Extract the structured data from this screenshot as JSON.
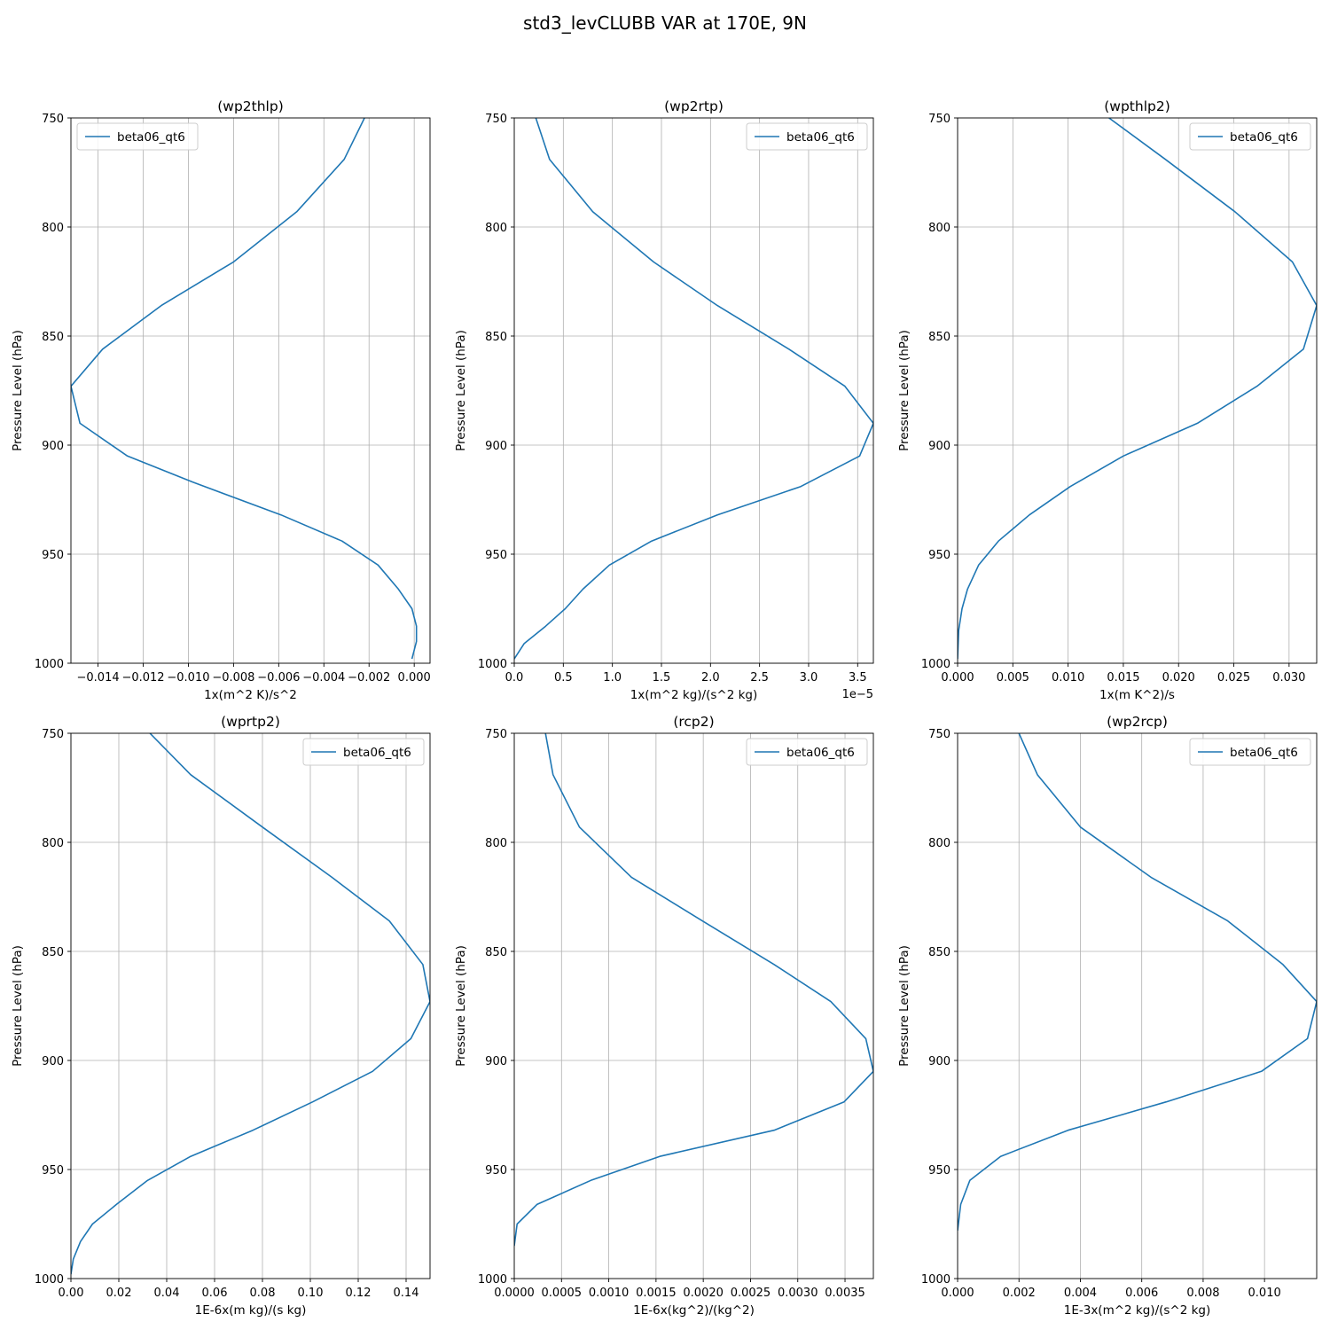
{
  "figure": {
    "title": "std3_levCLUBB VAR at 170E, 9N"
  },
  "style": {
    "line_color": "#1f77b4",
    "grid_color": "#b0b0b0"
  },
  "chart_data": [
    {
      "type": "line",
      "title": "(wp2thlp)",
      "xlabel": "1x(m^2 K)/s^2",
      "ylabel": "Pressure Level (hPa)",
      "xlim": [
        -0.0152,
        0.0007
      ],
      "ylim": [
        1000,
        750
      ],
      "y_inverted": true,
      "grid": true,
      "legend_position": "top-left",
      "x_ticks": [
        "−0.014",
        "−0.012",
        "−0.010",
        "−0.008",
        "−0.006",
        "−0.004",
        "−0.002",
        "0.000"
      ],
      "x_tick_values": [
        -0.014,
        -0.012,
        -0.01,
        -0.008,
        -0.006,
        -0.004,
        -0.002,
        0.0
      ],
      "y_ticks": [
        "750",
        "800",
        "850",
        "900",
        "950",
        "1000"
      ],
      "y_tick_values": [
        750,
        800,
        850,
        900,
        950,
        1000
      ],
      "series": [
        {
          "name": "beta06_qt6",
          "x": [
            -0.0022,
            -0.0031,
            -0.0052,
            -0.008,
            -0.0112,
            -0.0138,
            -0.0152,
            -0.0148,
            -0.0127,
            -0.0098,
            -0.0059,
            -0.0032,
            -0.0016,
            -0.0007,
            -0.0001,
            0.0001,
            0.0001,
            -0.0001
          ],
          "y": [
            750,
            769,
            793,
            816,
            836,
            856,
            873,
            890,
            905,
            917,
            932,
            944,
            955,
            966,
            975,
            983,
            990,
            998
          ]
        }
      ]
    },
    {
      "type": "line",
      "title": "(wp2rtp)",
      "xlabel": "1x(m^2 kg)/(s^2 kg)",
      "x_offset_text": "1e−5",
      "ylabel": "Pressure Level (hPa)",
      "xlim": [
        0.0,
        3.66
      ],
      "ylim": [
        1000,
        750
      ],
      "y_inverted": true,
      "grid": true,
      "legend_position": "top-right",
      "x_ticks": [
        "0.0",
        "0.5",
        "1.0",
        "1.5",
        "2.0",
        "2.5",
        "3.0",
        "3.5"
      ],
      "x_tick_values": [
        0.0,
        0.5,
        1.0,
        1.5,
        2.0,
        2.5,
        3.0,
        3.5
      ],
      "y_ticks": [
        "750",
        "800",
        "850",
        "900",
        "950",
        "1000"
      ],
      "y_tick_values": [
        750,
        800,
        850,
        900,
        950,
        1000
      ],
      "series": [
        {
          "name": "beta06_qt6",
          "x": [
            0.22,
            0.36,
            0.8,
            1.42,
            2.07,
            2.8,
            3.37,
            3.66,
            3.52,
            2.92,
            2.07,
            1.4,
            0.97,
            0.7,
            0.52,
            0.32,
            0.1,
            0.0
          ],
          "y": [
            750,
            769,
            793,
            816,
            836,
            856,
            873,
            890,
            905,
            919,
            932,
            944,
            955,
            966,
            975,
            983,
            991,
            998
          ]
        }
      ]
    },
    {
      "type": "line",
      "title": "(wpthlp2)",
      "xlabel": "1x(m K^2)/s",
      "ylabel": "Pressure Level (hPa)",
      "xlim": [
        0.0,
        0.0325
      ],
      "ylim": [
        1000,
        750
      ],
      "y_inverted": true,
      "grid": true,
      "legend_position": "top-right",
      "x_ticks": [
        "0.000",
        "0.005",
        "0.010",
        "0.015",
        "0.020",
        "0.025",
        "0.030"
      ],
      "x_tick_values": [
        0.0,
        0.005,
        0.01,
        0.015,
        0.02,
        0.025,
        0.03
      ],
      "y_ticks": [
        "750",
        "800",
        "850",
        "900",
        "950",
        "1000"
      ],
      "y_tick_values": [
        750,
        800,
        850,
        900,
        950,
        1000
      ],
      "series": [
        {
          "name": "beta06_qt6",
          "x": [
            0.0137,
            0.0188,
            0.0251,
            0.0303,
            0.0325,
            0.0313,
            0.0271,
            0.0217,
            0.015,
            0.0102,
            0.0065,
            0.0037,
            0.0019,
            0.0009,
            0.0004,
            0.0001,
            0.0
          ],
          "y": [
            750,
            769,
            793,
            816,
            836,
            856,
            873,
            890,
            905,
            919,
            932,
            944,
            955,
            966,
            975,
            985,
            998
          ]
        }
      ]
    },
    {
      "type": "line",
      "title": "(wprtp2)",
      "xlabel": "1E-6x(m kg)/(s kg)",
      "ylabel": "Pressure Level (hPa)",
      "xlim": [
        0.0,
        0.15
      ],
      "ylim": [
        1000,
        750
      ],
      "y_inverted": true,
      "grid": true,
      "legend_position": "top-right",
      "x_ticks": [
        "0.00",
        "0.02",
        "0.04",
        "0.06",
        "0.08",
        "0.10",
        "0.12",
        "0.14"
      ],
      "x_tick_values": [
        0.0,
        0.02,
        0.04,
        0.06,
        0.08,
        0.1,
        0.12,
        0.14
      ],
      "y_ticks": [
        "750",
        "800",
        "850",
        "900",
        "950",
        "1000"
      ],
      "y_tick_values": [
        750,
        800,
        850,
        900,
        950,
        1000
      ],
      "series": [
        {
          "name": "beta06_qt6",
          "x": [
            0.033,
            0.05,
            0.08,
            0.109,
            0.133,
            0.147,
            0.15,
            0.142,
            0.126,
            0.101,
            0.076,
            0.05,
            0.032,
            0.019,
            0.009,
            0.004,
            0.001,
            0.0
          ],
          "y": [
            750,
            769,
            793,
            816,
            836,
            856,
            873,
            890,
            905,
            919,
            932,
            944,
            955,
            966,
            975,
            983,
            991,
            998
          ]
        }
      ]
    },
    {
      "type": "line",
      "title": "(rcp2)",
      "xlabel": "1E-6x(kg^2)/(kg^2)",
      "ylabel": "Pressure Level (hPa)",
      "xlim": [
        0.0,
        0.0038
      ],
      "ylim": [
        1000,
        750
      ],
      "y_inverted": true,
      "grid": true,
      "legend_position": "top-right",
      "x_ticks": [
        "0.0000",
        "0.0005",
        "0.0010",
        "0.0015",
        "0.0020",
        "0.0025",
        "0.0030",
        "0.0035"
      ],
      "x_tick_values": [
        0.0,
        0.0005,
        0.001,
        0.0015,
        0.002,
        0.0025,
        0.003,
        0.0035
      ],
      "y_ticks": [
        "750",
        "800",
        "850",
        "900",
        "950",
        "1000"
      ],
      "y_tick_values": [
        750,
        800,
        850,
        900,
        950,
        1000
      ],
      "series": [
        {
          "name": "beta06_qt6",
          "x": [
            0.00033,
            0.00041,
            0.00069,
            0.00124,
            0.00199,
            0.00275,
            0.00335,
            0.00372,
            0.0038,
            0.00349,
            0.00275,
            0.00154,
            0.00081,
            0.00024,
            3e-05,
            0.0
          ],
          "y": [
            750,
            769,
            793,
            816,
            836,
            856,
            873,
            890,
            905,
            919,
            932,
            944,
            955,
            966,
            975,
            985
          ]
        }
      ]
    },
    {
      "type": "line",
      "title": "(wp2rcp)",
      "xlabel": "1E-3x(m^2 kg)/(s^2 kg)",
      "ylabel": "Pressure Level (hPa)",
      "xlim": [
        0.0,
        0.0117
      ],
      "ylim": [
        1000,
        750
      ],
      "y_inverted": true,
      "grid": true,
      "legend_position": "top-right",
      "x_ticks": [
        "0.000",
        "0.002",
        "0.004",
        "0.006",
        "0.008",
        "0.010"
      ],
      "x_tick_values": [
        0.0,
        0.002,
        0.004,
        0.006,
        0.008,
        0.01
      ],
      "y_ticks": [
        "750",
        "800",
        "850",
        "900",
        "950",
        "1000"
      ],
      "y_tick_values": [
        750,
        800,
        850,
        900,
        950,
        1000
      ],
      "series": [
        {
          "name": "beta06_qt6",
          "x": [
            0.002,
            0.0026,
            0.004,
            0.0063,
            0.0088,
            0.0106,
            0.0117,
            0.0114,
            0.0099,
            0.0068,
            0.0036,
            0.0014,
            0.0004,
            0.0001,
            0.0
          ],
          "y": [
            750,
            769,
            793,
            816,
            836,
            856,
            873,
            890,
            905,
            919,
            932,
            944,
            955,
            966,
            978
          ]
        }
      ]
    }
  ]
}
